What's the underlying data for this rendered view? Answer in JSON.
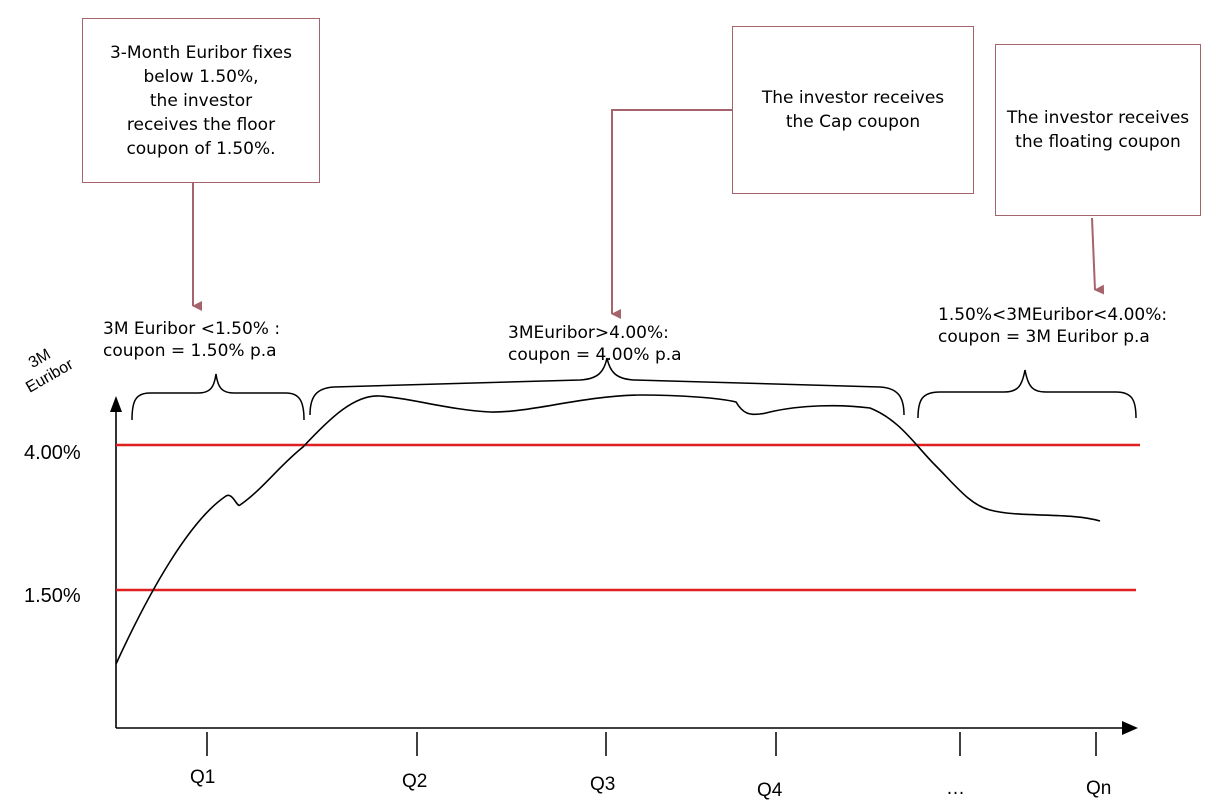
{
  "callouts": [
    "3-Month Euribor fixes\nbelow 1.50%,\nthe investor\nreceives the floor\ncoupon of 1.50%.",
    "The investor receives\nthe Cap coupon",
    "The investor receives\nthe floating coupon"
  ],
  "annotations": [
    "3M Euribor <1.50% :\ncoupon = 1.50% p.a",
    "3MEuribor>4.00%:\ncoupon = 4.00% p.a",
    "1.50%<3MEuribor<4.00%:\ncoupon = 3M Euribor p.a"
  ],
  "axis": {
    "ylabel": "3M\nEuribor",
    "levels": [
      {
        "label": "4.00%",
        "value": 4.0
      },
      {
        "label": "1.50%",
        "value": 1.5
      }
    ],
    "ticks": [
      "Q1",
      "Q2",
      "Q3",
      "Q4",
      "…",
      "Qn"
    ]
  },
  "colors": {
    "level_line": "#e02020",
    "box_border": "#a5636c",
    "curve": "#000000"
  }
}
